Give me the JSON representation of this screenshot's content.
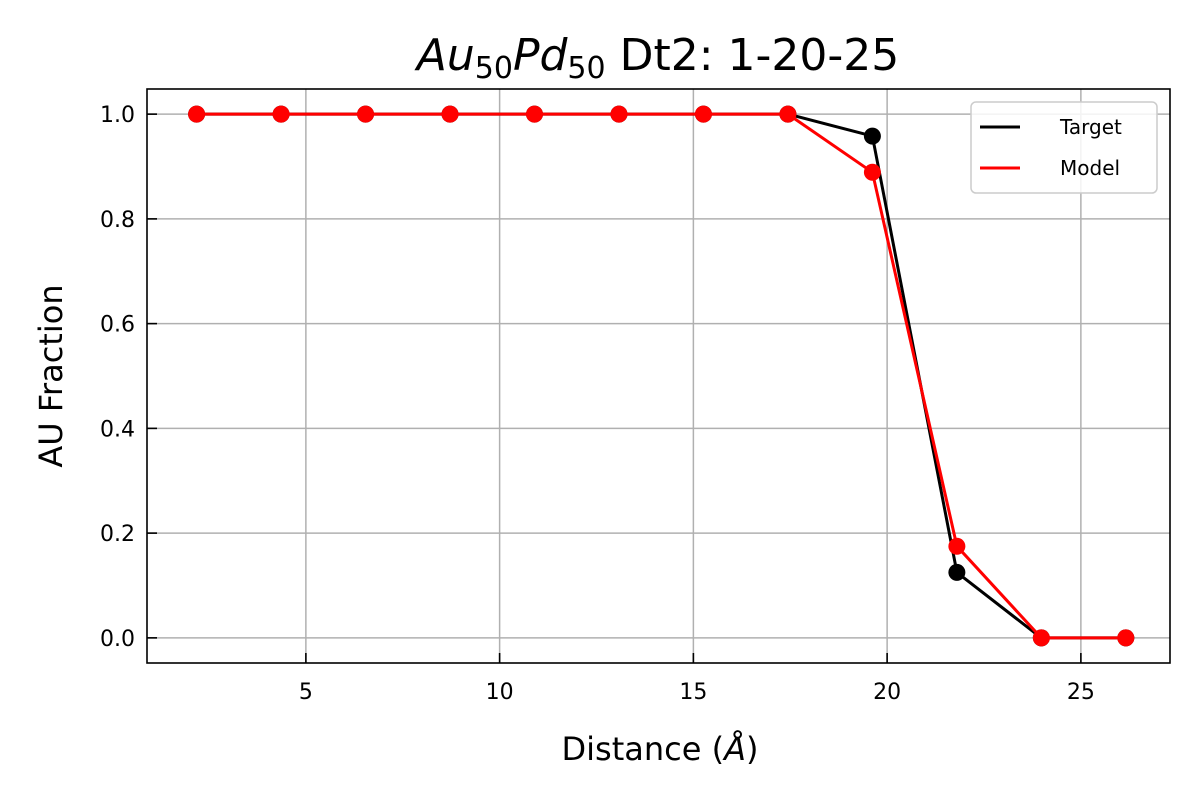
{
  "chart_data": {
    "type": "line",
    "title": {
      "el1_base": "Au",
      "el1_sub": "50",
      "el2_base": "Pd",
      "el2_sub": "50",
      "rest": " Dt2: 1-20-25"
    },
    "xlabel": {
      "prefix": "Distance (",
      "symbol": "Å",
      "suffix": ")"
    },
    "ylabel": "AU Fraction",
    "xlim": [
      0.9,
      27.3
    ],
    "ylim": [
      -0.048,
      1.048
    ],
    "xticks": [
      5,
      10,
      15,
      20,
      25
    ],
    "xtick_labels": [
      "5",
      "10",
      "15",
      "20",
      "25"
    ],
    "yticks": [
      0.0,
      0.2,
      0.4,
      0.6,
      0.8,
      1.0
    ],
    "ytick_labels": [
      "0.0",
      "0.2",
      "0.4",
      "0.6",
      "0.8",
      "1.0"
    ],
    "grid": true,
    "legend": {
      "position": "top-right"
    },
    "x": [
      2.18,
      4.36,
      6.54,
      8.72,
      10.9,
      13.08,
      15.26,
      17.44,
      19.62,
      21.8,
      23.98,
      26.16
    ],
    "series": [
      {
        "name": "Target",
        "color": "#000000",
        "values": [
          1.0,
          1.0,
          1.0,
          1.0,
          1.0,
          1.0,
          1.0,
          1.0,
          0.958,
          0.125,
          0.0,
          0.0
        ]
      },
      {
        "name": "Model",
        "color": "#ff0000",
        "values": [
          1.0,
          1.0,
          1.0,
          1.0,
          1.0,
          1.0,
          1.0,
          1.0,
          0.889,
          0.175,
          0.0,
          0.0
        ]
      }
    ]
  }
}
